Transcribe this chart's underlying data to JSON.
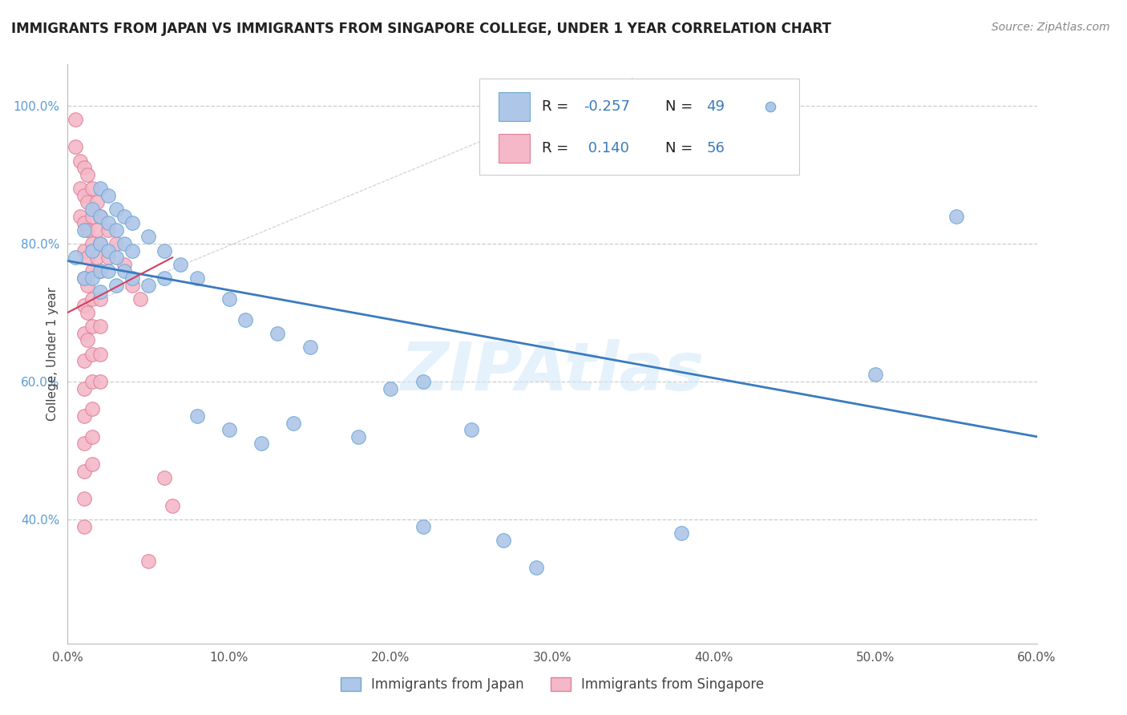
{
  "title": "IMMIGRANTS FROM JAPAN VS IMMIGRANTS FROM SINGAPORE COLLEGE, UNDER 1 YEAR CORRELATION CHART",
  "source_text": "Source: ZipAtlas.com",
  "ylabel": "College, Under 1 year",
  "xlim": [
    0.0,
    0.6
  ],
  "ylim": [
    0.22,
    1.06
  ],
  "ytick_labels": [
    "40.0%",
    "60.0%",
    "80.0%",
    "100.0%"
  ],
  "ytick_values": [
    0.4,
    0.6,
    0.8,
    1.0
  ],
  "xtick_labels": [
    "0.0%",
    "10.0%",
    "20.0%",
    "30.0%",
    "40.0%",
    "50.0%",
    "60.0%"
  ],
  "xtick_values": [
    0.0,
    0.1,
    0.2,
    0.3,
    0.4,
    0.5,
    0.6
  ],
  "legend_bottom": [
    "Immigrants from Japan",
    "Immigrants from Singapore"
  ],
  "japan_color": "#aec6e8",
  "japan_edge": "#6fa8d4",
  "singapore_color": "#f4b8c8",
  "singapore_edge": "#e08098",
  "japan_trend_color": "#3a7bbf",
  "singapore_trend_color": "#d04060",
  "watermark": "ZIPAtlas",
  "japan_points": [
    [
      0.005,
      0.78
    ],
    [
      0.01,
      0.82
    ],
    [
      0.01,
      0.75
    ],
    [
      0.015,
      0.85
    ],
    [
      0.015,
      0.79
    ],
    [
      0.015,
      0.75
    ],
    [
      0.02,
      0.88
    ],
    [
      0.02,
      0.84
    ],
    [
      0.02,
      0.8
    ],
    [
      0.02,
      0.76
    ],
    [
      0.02,
      0.73
    ],
    [
      0.025,
      0.87
    ],
    [
      0.025,
      0.83
    ],
    [
      0.025,
      0.79
    ],
    [
      0.025,
      0.76
    ],
    [
      0.03,
      0.85
    ],
    [
      0.03,
      0.82
    ],
    [
      0.03,
      0.78
    ],
    [
      0.03,
      0.74
    ],
    [
      0.035,
      0.84
    ],
    [
      0.035,
      0.8
    ],
    [
      0.035,
      0.76
    ],
    [
      0.04,
      0.83
    ],
    [
      0.04,
      0.79
    ],
    [
      0.04,
      0.75
    ],
    [
      0.05,
      0.81
    ],
    [
      0.05,
      0.74
    ],
    [
      0.06,
      0.79
    ],
    [
      0.06,
      0.75
    ],
    [
      0.07,
      0.77
    ],
    [
      0.08,
      0.75
    ],
    [
      0.1,
      0.72
    ],
    [
      0.11,
      0.69
    ],
    [
      0.13,
      0.67
    ],
    [
      0.15,
      0.65
    ],
    [
      0.2,
      0.59
    ],
    [
      0.22,
      0.6
    ],
    [
      0.08,
      0.55
    ],
    [
      0.1,
      0.53
    ],
    [
      0.12,
      0.51
    ],
    [
      0.14,
      0.54
    ],
    [
      0.18,
      0.52
    ],
    [
      0.25,
      0.53
    ],
    [
      0.22,
      0.39
    ],
    [
      0.27,
      0.37
    ],
    [
      0.29,
      0.33
    ],
    [
      0.38,
      0.38
    ],
    [
      0.5,
      0.61
    ],
    [
      0.55,
      0.84
    ]
  ],
  "singapore_points": [
    [
      0.005,
      0.98
    ],
    [
      0.005,
      0.94
    ],
    [
      0.008,
      0.92
    ],
    [
      0.008,
      0.88
    ],
    [
      0.008,
      0.84
    ],
    [
      0.01,
      0.91
    ],
    [
      0.01,
      0.87
    ],
    [
      0.01,
      0.83
    ],
    [
      0.01,
      0.79
    ],
    [
      0.01,
      0.75
    ],
    [
      0.01,
      0.71
    ],
    [
      0.01,
      0.67
    ],
    [
      0.01,
      0.63
    ],
    [
      0.01,
      0.59
    ],
    [
      0.01,
      0.55
    ],
    [
      0.01,
      0.51
    ],
    [
      0.01,
      0.47
    ],
    [
      0.01,
      0.43
    ],
    [
      0.01,
      0.39
    ],
    [
      0.012,
      0.9
    ],
    [
      0.012,
      0.86
    ],
    [
      0.012,
      0.82
    ],
    [
      0.012,
      0.78
    ],
    [
      0.012,
      0.74
    ],
    [
      0.012,
      0.7
    ],
    [
      0.012,
      0.66
    ],
    [
      0.015,
      0.88
    ],
    [
      0.015,
      0.84
    ],
    [
      0.015,
      0.8
    ],
    [
      0.015,
      0.76
    ],
    [
      0.015,
      0.72
    ],
    [
      0.015,
      0.68
    ],
    [
      0.015,
      0.64
    ],
    [
      0.015,
      0.6
    ],
    [
      0.015,
      0.56
    ],
    [
      0.015,
      0.52
    ],
    [
      0.015,
      0.48
    ],
    [
      0.018,
      0.86
    ],
    [
      0.018,
      0.82
    ],
    [
      0.018,
      0.78
    ],
    [
      0.02,
      0.84
    ],
    [
      0.02,
      0.8
    ],
    [
      0.02,
      0.76
    ],
    [
      0.02,
      0.72
    ],
    [
      0.02,
      0.68
    ],
    [
      0.02,
      0.64
    ],
    [
      0.02,
      0.6
    ],
    [
      0.025,
      0.82
    ],
    [
      0.025,
      0.78
    ],
    [
      0.03,
      0.8
    ],
    [
      0.035,
      0.77
    ],
    [
      0.04,
      0.74
    ],
    [
      0.045,
      0.72
    ],
    [
      0.05,
      0.34
    ],
    [
      0.06,
      0.46
    ],
    [
      0.065,
      0.42
    ]
  ],
  "japan_trend_x": [
    0.0,
    0.6
  ],
  "japan_trend_y": [
    0.775,
    0.52
  ],
  "singapore_trend_x": [
    0.0,
    0.065
  ],
  "singapore_trend_y": [
    0.7,
    0.78
  ],
  "singapore_trend_dashed": true,
  "dashed_line_y": [
    1.0,
    0.8,
    0.6,
    0.4
  ],
  "bg_color": "#ffffff",
  "grid_color": "#cccccc",
  "grid_style": "--"
}
